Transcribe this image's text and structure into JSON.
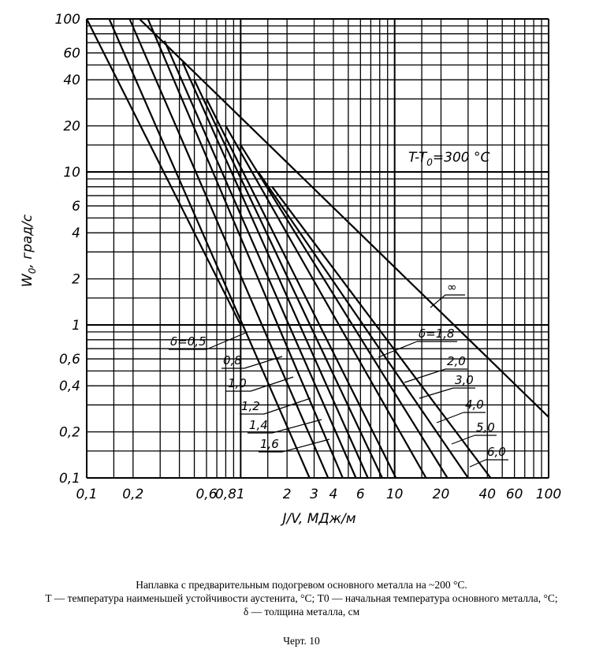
{
  "chart_data": {
    "type": "line",
    "scale": "log-log",
    "xlabel": "J/V, МДж/м",
    "ylabel": "W0, град/с",
    "ylabel_main": "W",
    "ylabel_sub": "0",
    "ylabel_rest": ", град/с",
    "x_range": [
      0.1,
      100
    ],
    "y_range": [
      0.1,
      100
    ],
    "grid": true,
    "x_tick_labels": [
      {
        "value": 0.1,
        "label": "0,1"
      },
      {
        "value": 0.2,
        "label": "0,2"
      },
      {
        "value": 0.6,
        "label": "0,6"
      },
      {
        "value": 0.8,
        "label": "0,8"
      },
      {
        "value": 1,
        "label": "1"
      },
      {
        "value": 2,
        "label": "2"
      },
      {
        "value": 3,
        "label": "3"
      },
      {
        "value": 4,
        "label": "4"
      },
      {
        "value": 6,
        "label": "6"
      },
      {
        "value": 10,
        "label": "10"
      },
      {
        "value": 20,
        "label": "20"
      },
      {
        "value": 40,
        "label": "40"
      },
      {
        "value": 60,
        "label": "60"
      },
      {
        "value": 100,
        "label": "100"
      }
    ],
    "y_tick_labels": [
      {
        "value": 100,
        "label": "100"
      },
      {
        "value": 60,
        "label": "60"
      },
      {
        "value": 40,
        "label": "40"
      },
      {
        "value": 20,
        "label": "20"
      },
      {
        "value": 10,
        "label": "10"
      },
      {
        "value": 6,
        "label": "6"
      },
      {
        "value": 4,
        "label": "4"
      },
      {
        "value": 2,
        "label": "2"
      },
      {
        "value": 1,
        "label": "1"
      },
      {
        "value": 0.6,
        "label": "0,6"
      },
      {
        "value": 0.4,
        "label": "0,4"
      },
      {
        "value": 0.2,
        "label": "0,2"
      },
      {
        "value": 0.1,
        "label": "0,1"
      }
    ],
    "annotation": {
      "prefix": "T-T",
      "sub": "0",
      "suffix": "=300 °C"
    },
    "series": [
      {
        "name": "δ=0,5",
        "points": [
          [
            0.1,
            100
          ],
          [
            1.0,
            1.0
          ]
        ]
      },
      {
        "name": "0,8",
        "points": [
          [
            0.14,
            100
          ],
          [
            2.8,
            0.1
          ]
        ]
      },
      {
        "name": "1,0",
        "points": [
          [
            0.19,
            100
          ],
          [
            3.7,
            0.1
          ]
        ]
      },
      {
        "name": "1,2",
        "points": [
          [
            0.25,
            100
          ],
          [
            4.6,
            0.1
          ]
        ]
      },
      {
        "name": "1,4",
        "points": [
          [
            0.32,
            72
          ],
          [
            5.6,
            0.1
          ]
        ]
      },
      {
        "name": "1,6",
        "points": [
          [
            0.42,
            52
          ],
          [
            6.7,
            0.1
          ]
        ]
      },
      {
        "name": "δ=1,8",
        "points": [
          [
            0.5,
            40
          ],
          [
            8.3,
            0.1
          ]
        ]
      },
      {
        "name": "2,0",
        "points": [
          [
            0.6,
            30
          ],
          [
            10.2,
            0.1
          ]
        ]
      },
      {
        "name": "3,0",
        "points": [
          [
            0.8,
            20
          ],
          [
            16,
            0.1
          ]
        ]
      },
      {
        "name": "4,0",
        "points": [
          [
            1.0,
            15
          ],
          [
            22,
            0.1
          ]
        ]
      },
      {
        "name": "5,0",
        "points": [
          [
            1.3,
            10
          ],
          [
            30,
            0.1
          ]
        ]
      },
      {
        "name": "6,0",
        "points": [
          [
            1.6,
            8
          ],
          [
            42,
            0.1
          ]
        ]
      },
      {
        "name": "∞",
        "points": [
          [
            0.22,
            100
          ],
          [
            100,
            0.25
          ]
        ]
      }
    ]
  },
  "caption": {
    "line1": "Наплавка с предварительным подогревом основного металла на ~200 °С.",
    "line2": "T — температура наименьшей устойчивости аустенита, °С; T0 — начальная температура основного металла, °С;",
    "line3": "δ — толщина металла, см",
    "drawing": "Черт. 10"
  }
}
